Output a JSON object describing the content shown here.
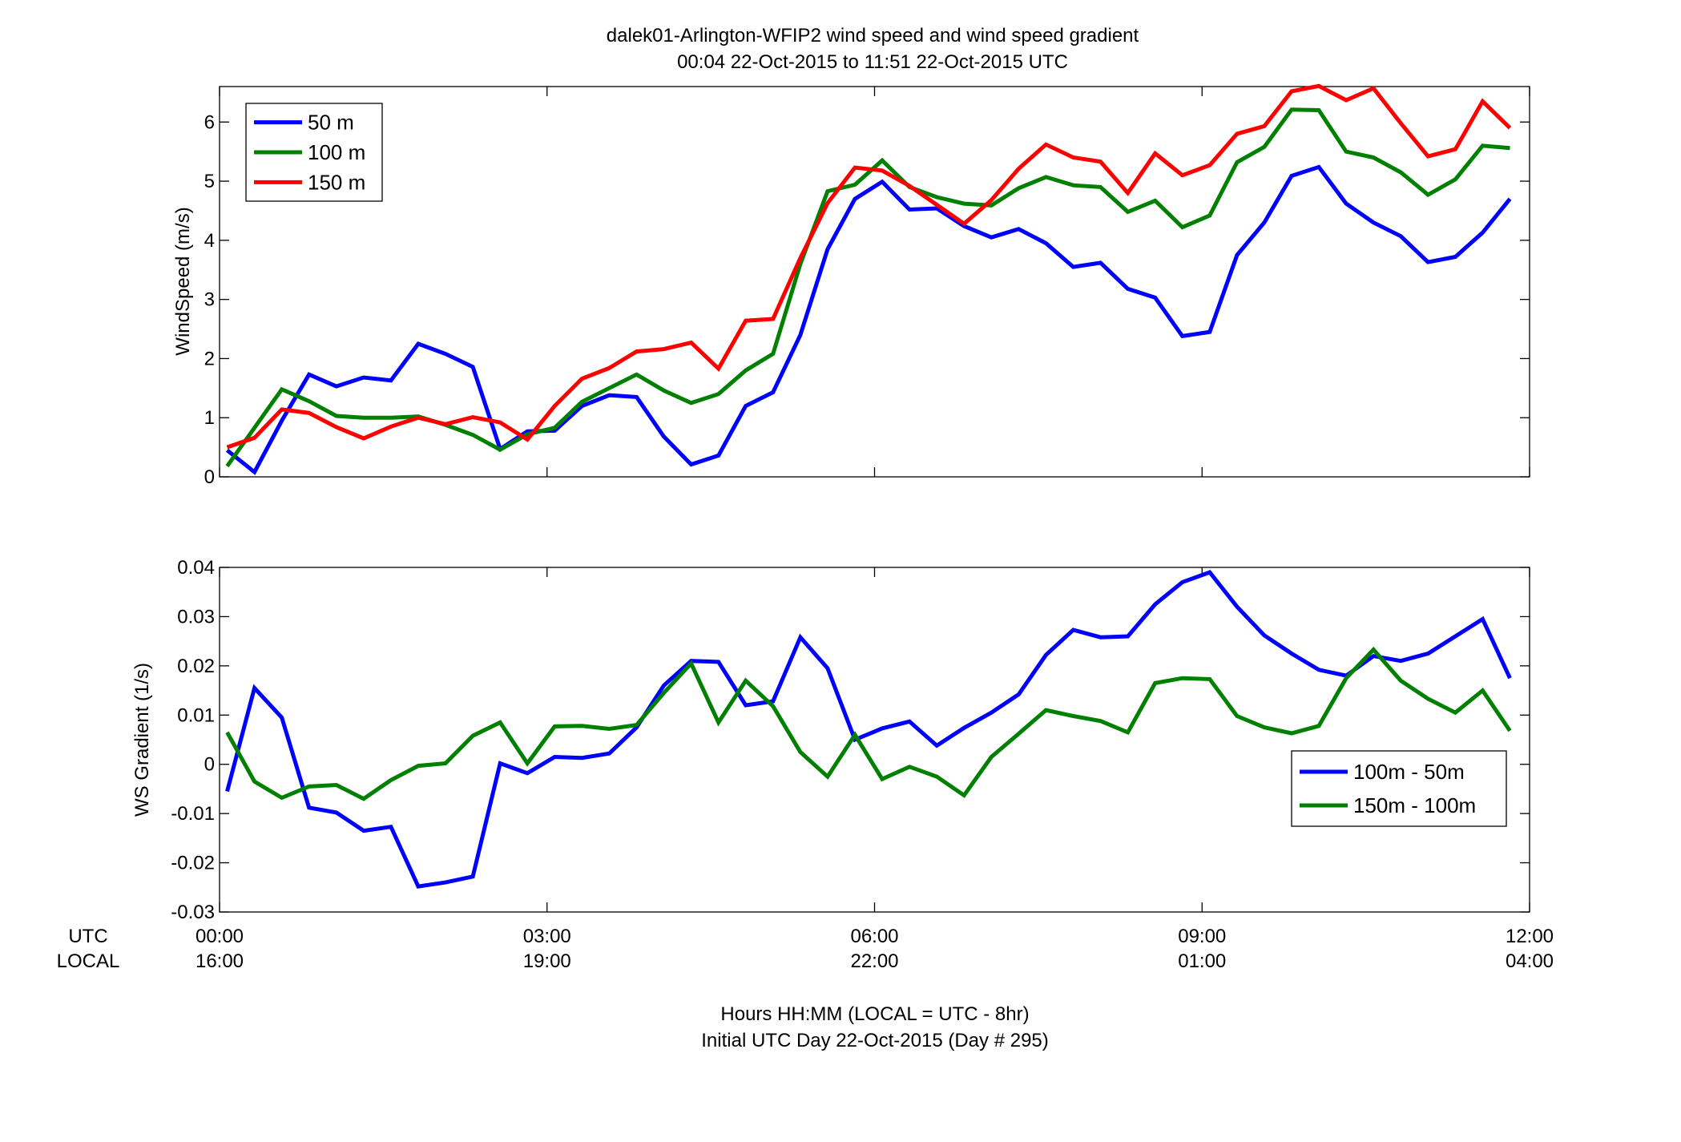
{
  "header": {
    "title_line1": "dalek01-Arlington-WFIP2  wind speed and wind speed gradient",
    "title_line2": "00:04 22-Oct-2015 to 11:51 22-Oct-2015  UTC"
  },
  "footer": {
    "xlabel_line1": "Hours HH:MM  (LOCAL = UTC - 8hr)",
    "xlabel_line2": "Initial UTC Day 22-Oct-2015 (Day # 295)",
    "utc_label": "UTC",
    "local_label": "LOCAL"
  },
  "x_ticks": {
    "hours": [
      0,
      3,
      6,
      9,
      12
    ],
    "utc": [
      "00:00",
      "03:00",
      "06:00",
      "09:00",
      "12:00"
    ],
    "local": [
      "16:00",
      "19:00",
      "22:00",
      "01:00",
      "04:00"
    ]
  },
  "chart_data": [
    {
      "type": "line",
      "ylabel": "WindSpeed (m/s)",
      "xlim": [
        0,
        12
      ],
      "ylim": [
        0,
        6.6
      ],
      "yticks": [
        0,
        1,
        2,
        3,
        4,
        5,
        6
      ],
      "ytick_labels": [
        "0",
        "1",
        "2",
        "3",
        "4",
        "5",
        "6"
      ],
      "legend": "top-left",
      "grid": false,
      "x": [
        0.07,
        0.32,
        0.57,
        0.82,
        1.07,
        1.32,
        1.57,
        1.82,
        2.07,
        2.32,
        2.57,
        2.82,
        3.07,
        3.32,
        3.57,
        3.82,
        4.07,
        4.32,
        4.57,
        4.82,
        5.07,
        5.32,
        5.57,
        5.82,
        6.07,
        6.32,
        6.57,
        6.82,
        7.07,
        7.32,
        7.57,
        7.82,
        8.07,
        8.32,
        8.57,
        8.82,
        9.07,
        9.32,
        9.57,
        9.82,
        10.07,
        10.32,
        10.57,
        10.82,
        11.07,
        11.32,
        11.57,
        11.82
      ],
      "series": [
        {
          "name": "50 m",
          "color": "#0000ff",
          "values": [
            0.45,
            0.08,
            0.95,
            1.73,
            1.53,
            1.68,
            1.63,
            2.25,
            2.08,
            1.86,
            0.47,
            0.77,
            0.78,
            1.2,
            1.38,
            1.35,
            0.68,
            0.21,
            0.36,
            1.2,
            1.43,
            2.4,
            3.85,
            4.7,
            4.99,
            4.52,
            4.54,
            4.24,
            4.05,
            4.19,
            3.95,
            3.55,
            3.62,
            3.18,
            3.03,
            2.38,
            2.45,
            3.75,
            4.3,
            5.09,
            5.24,
            4.62,
            4.3,
            4.07,
            3.63,
            3.72,
            4.13,
            4.7
          ]
        },
        {
          "name": "100 m",
          "color": "#008000",
          "values": [
            0.18,
            0.83,
            1.48,
            1.28,
            1.03,
            1.0,
            1.0,
            1.02,
            0.88,
            0.71,
            0.46,
            0.72,
            0.83,
            1.27,
            1.5,
            1.73,
            1.46,
            1.25,
            1.4,
            1.8,
            2.08,
            3.6,
            4.83,
            4.94,
            5.35,
            4.9,
            4.73,
            4.62,
            4.59,
            4.88,
            5.07,
            4.93,
            4.9,
            4.48,
            4.67,
            4.22,
            4.42,
            5.32,
            5.58,
            6.21,
            6.2,
            5.5,
            5.4,
            5.15,
            4.77,
            5.03,
            5.6,
            5.56
          ]
        },
        {
          "name": "150 m",
          "color": "#ff0000",
          "values": [
            0.5,
            0.66,
            1.14,
            1.08,
            0.84,
            0.65,
            0.85,
            1.0,
            0.89,
            1.01,
            0.92,
            0.63,
            1.2,
            1.66,
            1.84,
            2.12,
            2.16,
            2.27,
            1.83,
            2.64,
            2.67,
            3.7,
            4.63,
            5.23,
            5.18,
            4.92,
            4.6,
            4.28,
            4.68,
            5.21,
            5.62,
            5.4,
            5.33,
            4.8,
            5.47,
            5.1,
            5.27,
            5.8,
            5.93,
            6.52,
            6.61,
            6.37,
            6.57,
            5.98,
            5.42,
            5.54,
            6.35,
            5.9
          ]
        }
      ]
    },
    {
      "type": "line",
      "ylabel": "WS Gradient (1/s)",
      "xlim": [
        0,
        12
      ],
      "ylim": [
        -0.03,
        0.04
      ],
      "yticks": [
        -0.03,
        -0.02,
        -0.01,
        0,
        0.01,
        0.02,
        0.03,
        0.04
      ],
      "ytick_labels": [
        "-0.03",
        "-0.02",
        "-0.01",
        "0",
        "0.01",
        "0.02",
        "0.03",
        "0.04"
      ],
      "legend": "right",
      "grid": false,
      "x": [
        0.07,
        0.32,
        0.57,
        0.82,
        1.07,
        1.32,
        1.57,
        1.82,
        2.07,
        2.32,
        2.57,
        2.82,
        3.07,
        3.32,
        3.57,
        3.82,
        4.07,
        4.32,
        4.57,
        4.82,
        5.07,
        5.32,
        5.57,
        5.82,
        6.07,
        6.32,
        6.57,
        6.82,
        7.07,
        7.32,
        7.57,
        7.82,
        8.07,
        8.32,
        8.57,
        8.82,
        9.07,
        9.32,
        9.57,
        9.82,
        10.07,
        10.32,
        10.57,
        10.82,
        11.07,
        11.32,
        11.57,
        11.82
      ],
      "series": [
        {
          "name": "100m - 50m",
          "color": "#0000ff",
          "values": [
            -0.0055,
            0.0155,
            0.0095,
            -0.0088,
            -0.0098,
            -0.0135,
            -0.0127,
            -0.0248,
            -0.024,
            -0.0228,
            0.0002,
            -0.0018,
            0.0015,
            0.0013,
            0.0022,
            0.0075,
            0.016,
            0.021,
            0.0208,
            0.012,
            0.0128,
            0.0258,
            0.0195,
            0.005,
            0.0073,
            0.0087,
            0.0038,
            0.0074,
            0.0105,
            0.0142,
            0.0222,
            0.0273,
            0.0258,
            0.026,
            0.0325,
            0.037,
            0.039,
            0.032,
            0.0262,
            0.0225,
            0.0192,
            0.018,
            0.022,
            0.021,
            0.0225,
            0.026,
            0.0295,
            0.0175
          ]
        },
        {
          "name": "150m - 100m",
          "color": "#008000",
          "values": [
            0.0065,
            -0.0035,
            -0.0068,
            -0.0045,
            -0.0042,
            -0.007,
            -0.0032,
            -0.0003,
            0.0002,
            0.0058,
            0.0085,
            0.0002,
            0.0077,
            0.0078,
            0.0072,
            0.008,
            0.0145,
            0.0205,
            0.0085,
            0.017,
            0.0118,
            0.0025,
            -0.0025,
            0.006,
            -0.003,
            -0.0005,
            -0.0025,
            -0.0063,
            0.0015,
            0.0062,
            0.011,
            0.0098,
            0.0088,
            0.0065,
            0.0165,
            0.0175,
            0.0173,
            0.0098,
            0.0075,
            0.0063,
            0.0078,
            0.0175,
            0.0233,
            0.017,
            0.0133,
            0.0105,
            0.015,
            0.0068
          ]
        }
      ]
    }
  ]
}
